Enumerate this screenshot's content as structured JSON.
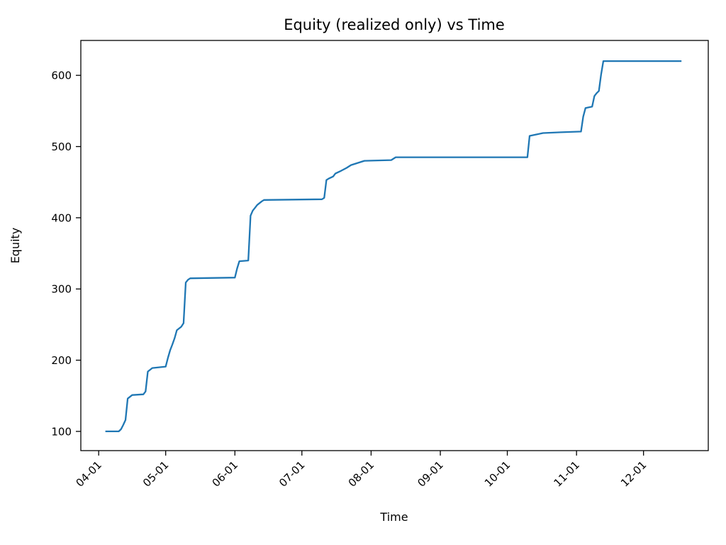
{
  "chart_data": {
    "type": "line",
    "title": "Equity (realized only) vs Time",
    "xlabel": "Time",
    "ylabel": "Equity",
    "series_name": "Equity (realized only)",
    "line_color": "#1f77b4",
    "grid": false,
    "legend": null,
    "x_tick_labels": [
      "04-01",
      "05-01",
      "06-01",
      "07-01",
      "08-01",
      "09-01",
      "10-01",
      "11-01",
      "12-01"
    ],
    "y_tick_labels": [
      "100",
      "200",
      "300",
      "400",
      "500",
      "600"
    ],
    "y_ticks": [
      100,
      200,
      300,
      400,
      500,
      600
    ],
    "xlim": [
      "03-24",
      "12-30"
    ],
    "ylim": [
      73,
      649
    ],
    "x": [
      "04-04",
      "04-10",
      "04-11",
      "04-12",
      "04-13",
      "04-14",
      "04-16",
      "04-21",
      "04-22",
      "04-23",
      "04-25",
      "05-01",
      "05-02",
      "05-03",
      "05-04",
      "05-05",
      "05-06",
      "05-08",
      "05-09",
      "05-10",
      "05-11",
      "05-12",
      "06-01",
      "06-02",
      "06-03",
      "06-07",
      "06-08",
      "06-09",
      "06-10",
      "06-11",
      "06-13",
      "06-14",
      "07-10",
      "07-11",
      "07-12",
      "07-13",
      "07-15",
      "07-16",
      "07-18",
      "07-21",
      "07-23",
      "07-27",
      "07-29",
      "08-10",
      "08-12",
      "10-10",
      "10-11",
      "10-14",
      "10-17",
      "10-25",
      "11-03",
      "11-04",
      "11-05",
      "11-08",
      "11-09",
      "11-10",
      "11-11",
      "11-12",
      "11-13",
      "12-18"
    ],
    "y": [
      100,
      100,
      103,
      109,
      116,
      146,
      151,
      152,
      156,
      184,
      189,
      191,
      203,
      214,
      222,
      231,
      242,
      247,
      252,
      309,
      313,
      315,
      316,
      329,
      339,
      340,
      403,
      410,
      414,
      418,
      423,
      425,
      426,
      428,
      453,
      455,
      458,
      462,
      465,
      470,
      474,
      478,
      480,
      481,
      485,
      485,
      515,
      517,
      519,
      520,
      521,
      542,
      554,
      556,
      571,
      575,
      578,
      601,
      620,
      620
    ]
  }
}
